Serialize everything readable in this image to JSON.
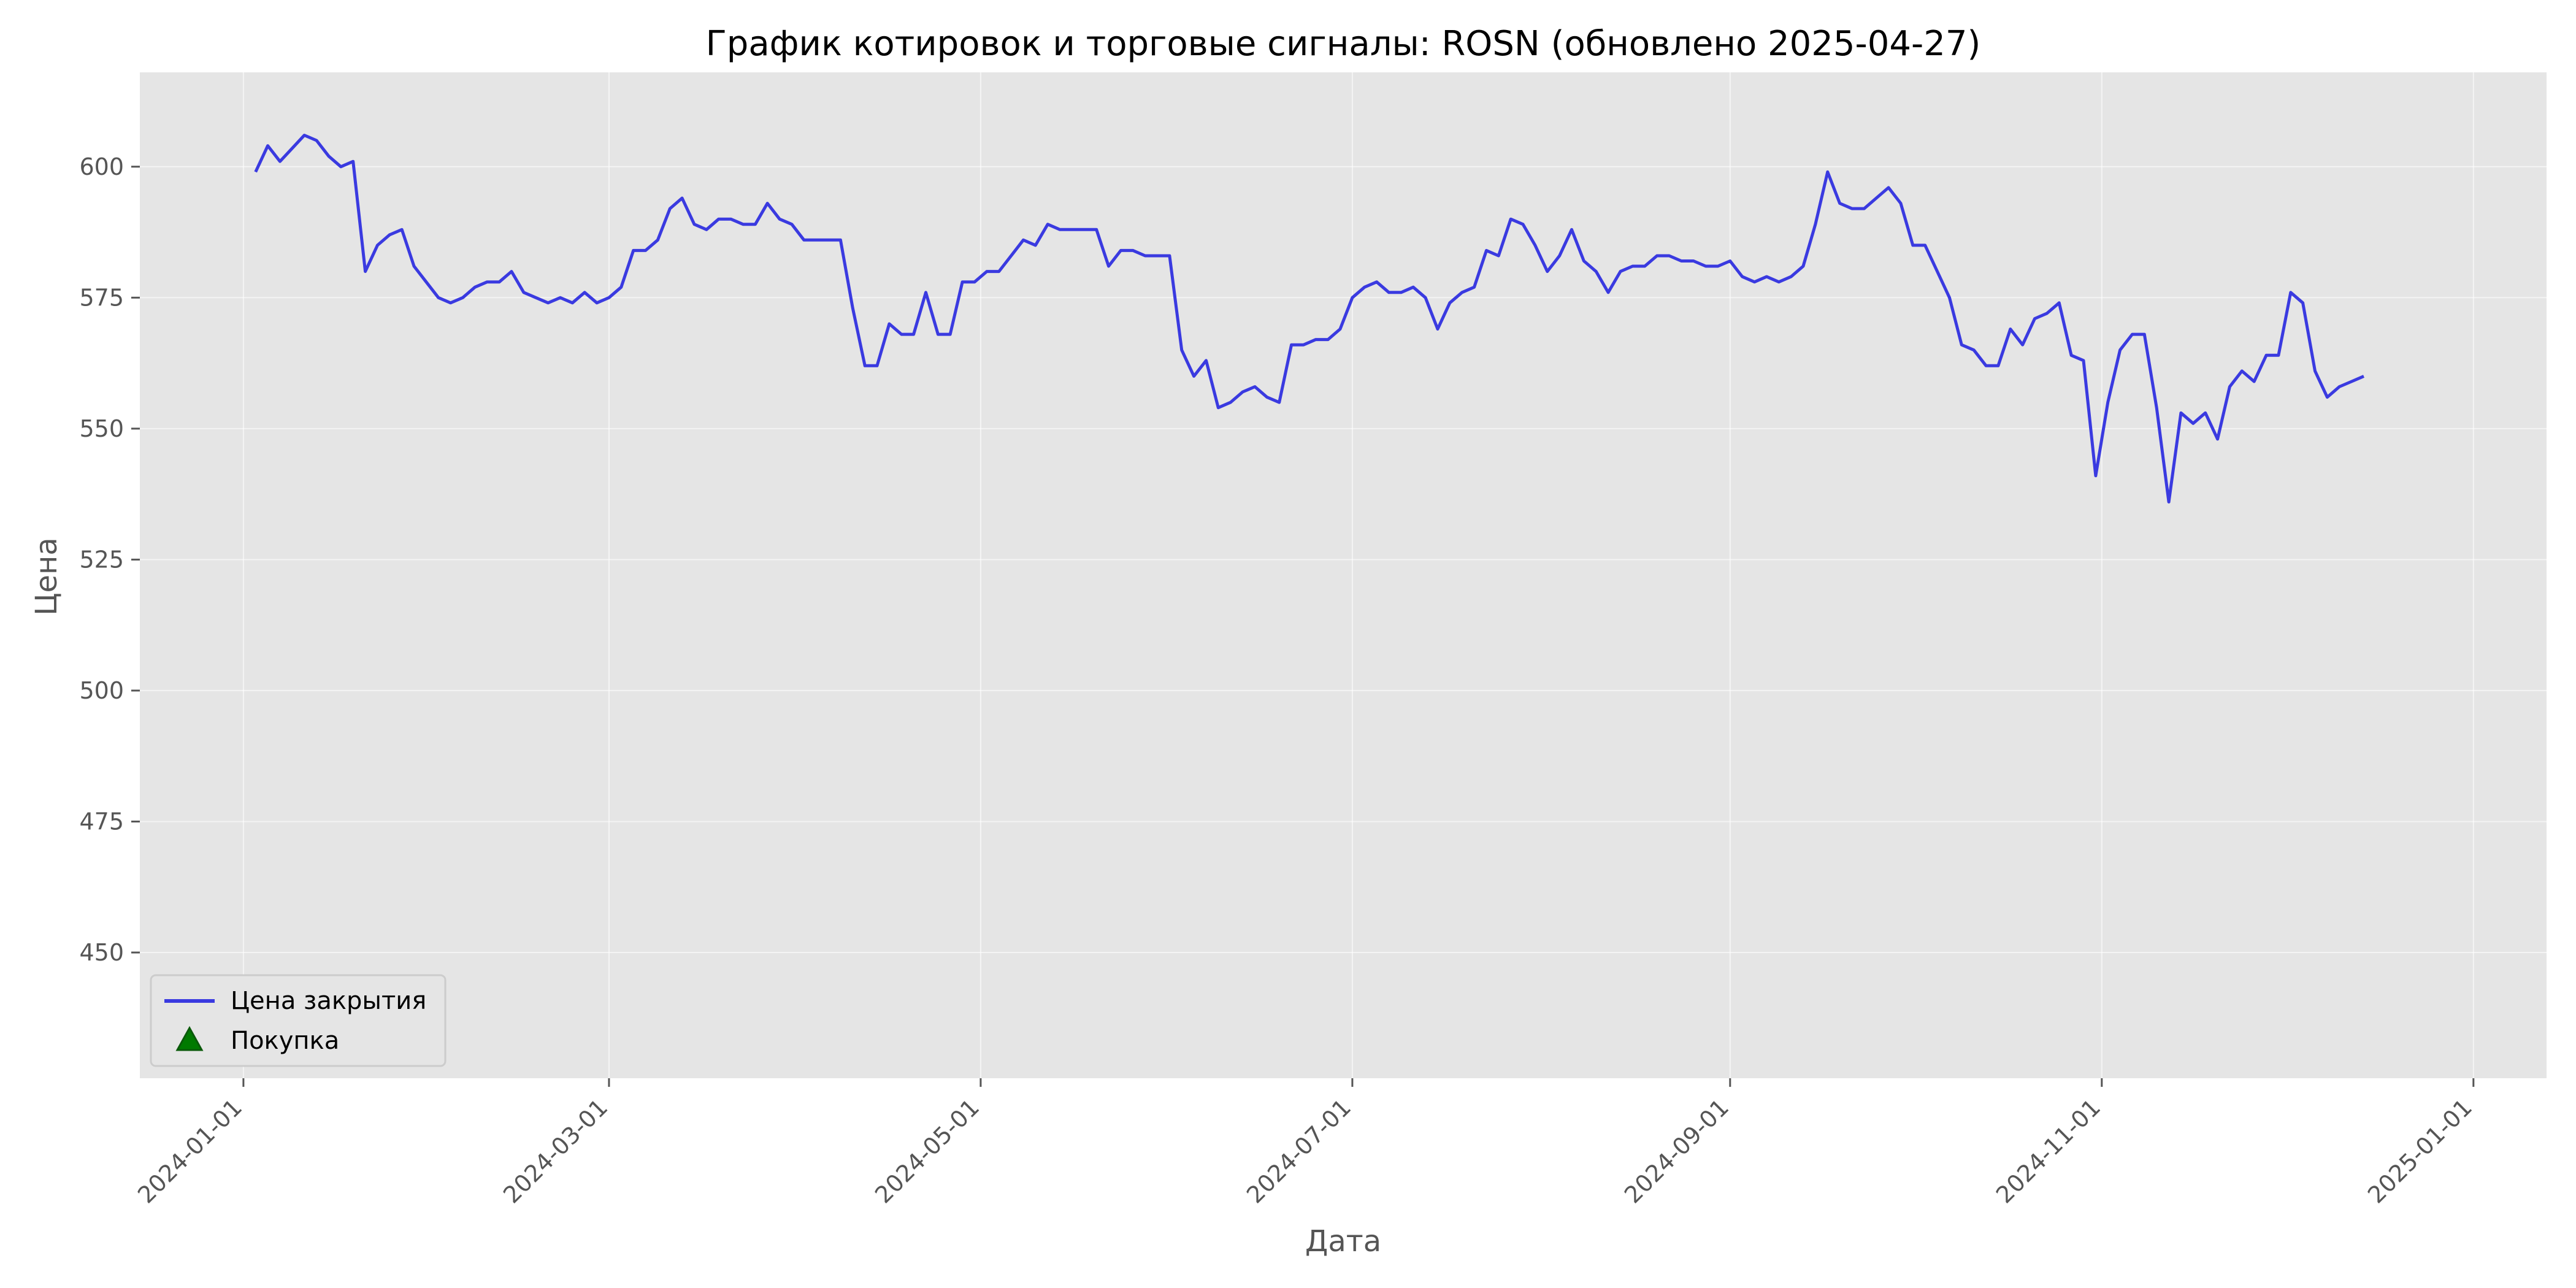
{
  "chart_data": {
    "type": "line",
    "title": "График котировок и торговые сигналы: ROSN (обновлено 2025-04-27)",
    "xlabel": "Дата",
    "ylabel": "Цена",
    "x_ticks": [
      "2024-01-01",
      "2024-03-01",
      "2024-05-01",
      "2024-07-01",
      "2024-09-01",
      "2024-11-01",
      "2025-01-01"
    ],
    "y_ticks": [
      450,
      475,
      500,
      525,
      550,
      575,
      600
    ],
    "xlim": [
      "2023-12-15",
      "2025-01-13"
    ],
    "ylim": [
      426,
      618
    ],
    "grid": true,
    "legend_position": "lower-left",
    "colors": {
      "line": "#3a3ae0",
      "marker": "#007a00",
      "marker_edge": "#0a5a0a",
      "plot_bg": "#e5e5e5"
    },
    "series": [
      {
        "name": "Цена закрытия",
        "type": "line",
        "points": [
          [
            "2024-01-03",
            599
          ],
          [
            "2024-01-05",
            604
          ],
          [
            "2024-01-07",
            601
          ],
          [
            "2024-01-11",
            606
          ],
          [
            "2024-01-13",
            605
          ],
          [
            "2024-01-15",
            602
          ],
          [
            "2024-01-17",
            600
          ],
          [
            "2024-01-19",
            601
          ],
          [
            "2024-01-21",
            580
          ],
          [
            "2024-01-23",
            585
          ],
          [
            "2024-01-25",
            587
          ],
          [
            "2024-01-27",
            588
          ],
          [
            "2024-01-29",
            581
          ],
          [
            "2024-01-31",
            578
          ],
          [
            "2024-02-02",
            575
          ],
          [
            "2024-02-04",
            574
          ],
          [
            "2024-02-06",
            575
          ],
          [
            "2024-02-08",
            577
          ],
          [
            "2024-02-10",
            578
          ],
          [
            "2024-02-12",
            578
          ],
          [
            "2024-02-14",
            580
          ],
          [
            "2024-02-16",
            576
          ],
          [
            "2024-02-18",
            575
          ],
          [
            "2024-02-20",
            574
          ],
          [
            "2024-02-22",
            575
          ],
          [
            "2024-02-24",
            574
          ],
          [
            "2024-02-26",
            576
          ],
          [
            "2024-02-28",
            574
          ],
          [
            "2024-03-01",
            575
          ],
          [
            "2024-03-03",
            577
          ],
          [
            "2024-03-05",
            584
          ],
          [
            "2024-03-07",
            584
          ],
          [
            "2024-03-09",
            586
          ],
          [
            "2024-03-11",
            592
          ],
          [
            "2024-03-13",
            594
          ],
          [
            "2024-03-15",
            589
          ],
          [
            "2024-03-17",
            588
          ],
          [
            "2024-03-19",
            590
          ],
          [
            "2024-03-21",
            590
          ],
          [
            "2024-03-23",
            589
          ],
          [
            "2024-03-25",
            589
          ],
          [
            "2024-03-27",
            593
          ],
          [
            "2024-03-29",
            590
          ],
          [
            "2024-03-31",
            589
          ],
          [
            "2024-04-02",
            586
          ],
          [
            "2024-04-04",
            586
          ],
          [
            "2024-04-06",
            586
          ],
          [
            "2024-04-08",
            586
          ],
          [
            "2024-04-10",
            573
          ],
          [
            "2024-04-12",
            562
          ],
          [
            "2024-04-14",
            562
          ],
          [
            "2024-04-16",
            570
          ],
          [
            "2024-04-18",
            568
          ],
          [
            "2024-04-20",
            568
          ],
          [
            "2024-04-22",
            576
          ],
          [
            "2024-04-24",
            568
          ],
          [
            "2024-04-26",
            568
          ],
          [
            "2024-04-28",
            578
          ],
          [
            "2024-04-30",
            578
          ],
          [
            "2024-05-02",
            580
          ],
          [
            "2024-05-04",
            580
          ],
          [
            "2024-05-06",
            583
          ],
          [
            "2024-05-08",
            586
          ],
          [
            "2024-05-10",
            585
          ],
          [
            "2024-05-12",
            589
          ],
          [
            "2024-05-14",
            588
          ],
          [
            "2024-05-16",
            588
          ],
          [
            "2024-05-18",
            588
          ],
          [
            "2024-05-20",
            588
          ],
          [
            "2024-05-22",
            581
          ],
          [
            "2024-05-24",
            584
          ],
          [
            "2024-05-26",
            584
          ],
          [
            "2024-05-28",
            583
          ],
          [
            "2024-05-30",
            583
          ],
          [
            "2024-06-01",
            583
          ],
          [
            "2024-06-03",
            565
          ],
          [
            "2024-06-05",
            560
          ],
          [
            "2024-06-07",
            563
          ],
          [
            "2024-06-09",
            554
          ],
          [
            "2024-06-11",
            555
          ],
          [
            "2024-06-13",
            557
          ],
          [
            "2024-06-15",
            558
          ],
          [
            "2024-06-17",
            556
          ],
          [
            "2024-06-19",
            555
          ],
          [
            "2024-06-21",
            566
          ],
          [
            "2024-06-23",
            566
          ],
          [
            "2024-06-25",
            567
          ],
          [
            "2024-06-27",
            567
          ],
          [
            "2024-06-29",
            569
          ],
          [
            "2024-07-01",
            575
          ],
          [
            "2024-07-03",
            577
          ],
          [
            "2024-07-05",
            578
          ],
          [
            "2024-07-07",
            576
          ],
          [
            "2024-07-09",
            576
          ],
          [
            "2024-07-11",
            577
          ],
          [
            "2024-07-13",
            575
          ],
          [
            "2024-07-15",
            569
          ],
          [
            "2024-07-17",
            574
          ],
          [
            "2024-07-19",
            576
          ],
          [
            "2024-07-21",
            577
          ],
          [
            "2024-07-23",
            584
          ],
          [
            "2024-07-25",
            583
          ],
          [
            "2024-07-27",
            590
          ],
          [
            "2024-07-29",
            589
          ],
          [
            "2024-07-31",
            585
          ],
          [
            "2024-08-02",
            580
          ],
          [
            "2024-08-04",
            583
          ],
          [
            "2024-08-06",
            588
          ],
          [
            "2024-08-08",
            582
          ],
          [
            "2024-08-10",
            580
          ],
          [
            "2024-08-12",
            576
          ],
          [
            "2024-08-14",
            580
          ],
          [
            "2024-08-16",
            581
          ],
          [
            "2024-08-18",
            581
          ],
          [
            "2024-08-20",
            583
          ],
          [
            "2024-08-22",
            583
          ],
          [
            "2024-08-24",
            582
          ],
          [
            "2024-08-26",
            582
          ],
          [
            "2024-08-28",
            581
          ],
          [
            "2024-08-30",
            581
          ],
          [
            "2024-09-01",
            582
          ],
          [
            "2024-09-03",
            579
          ],
          [
            "2024-09-05",
            578
          ],
          [
            "2024-09-07",
            579
          ],
          [
            "2024-09-09",
            578
          ],
          [
            "2024-09-11",
            579
          ],
          [
            "2024-09-13",
            581
          ],
          [
            "2024-09-15",
            589
          ],
          [
            "2024-09-17",
            599
          ],
          [
            "2024-09-19",
            593
          ],
          [
            "2024-09-21",
            592
          ],
          [
            "2024-09-23",
            592
          ],
          [
            "2024-09-25",
            594
          ],
          [
            "2024-09-27",
            596
          ],
          [
            "2024-09-29",
            593
          ],
          [
            "2024-10-01",
            585
          ],
          [
            "2024-10-03",
            585
          ],
          [
            "2024-10-05",
            580
          ],
          [
            "2024-10-07",
            575
          ],
          [
            "2024-10-09",
            566
          ],
          [
            "2024-10-11",
            565
          ],
          [
            "2024-10-13",
            562
          ],
          [
            "2024-10-15",
            562
          ],
          [
            "2024-10-17",
            569
          ],
          [
            "2024-10-19",
            566
          ],
          [
            "2024-10-21",
            571
          ],
          [
            "2024-10-23",
            572
          ],
          [
            "2024-10-25",
            574
          ],
          [
            "2024-10-27",
            564
          ],
          [
            "2024-10-29",
            563
          ],
          [
            "2024-10-31",
            541
          ],
          [
            "2024-11-02",
            555
          ],
          [
            "2024-11-04",
            565
          ],
          [
            "2024-11-06",
            568
          ],
          [
            "2024-11-08",
            568
          ],
          [
            "2024-11-10",
            554
          ],
          [
            "2024-11-12",
            536
          ],
          [
            "2024-11-14",
            553
          ],
          [
            "2024-11-16",
            551
          ],
          [
            "2024-11-18",
            553
          ],
          [
            "2024-11-20",
            548
          ],
          [
            "2024-11-22",
            558
          ],
          [
            "2024-11-24",
            561
          ],
          [
            "2024-11-26",
            559
          ],
          [
            "2024-11-28",
            564
          ],
          [
            "2024-11-30",
            564
          ],
          [
            "2024-12-02",
            576
          ],
          [
            "2024-12-04",
            574
          ],
          [
            "2024-12-06",
            561
          ],
          [
            "2024-12-08",
            556
          ],
          [
            "2024-12-10",
            558
          ],
          [
            "2024-12-12",
            559
          ],
          [
            "2024-12-14",
            560
          ]
        ]
      },
      {
        "name": "Покупка",
        "type": "scatter",
        "marker": "triangle-up",
        "points": []
      }
    ]
  }
}
